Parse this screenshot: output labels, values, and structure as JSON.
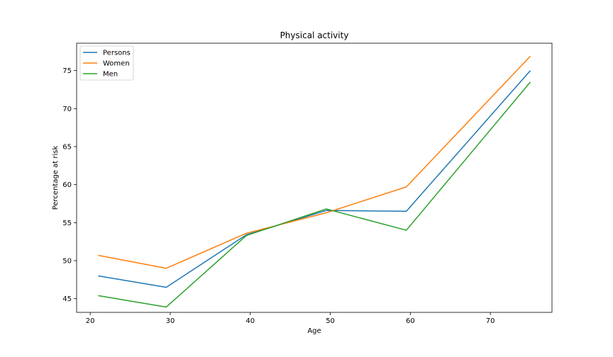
{
  "chart_data": {
    "type": "line",
    "title": "Physical activity",
    "xlabel": "Age",
    "ylabel": "Percentage at risk",
    "xlim": [
      18.3,
      77.7
    ],
    "ylim": [
      43.2,
      78.6
    ],
    "xticks": [
      20,
      30,
      40,
      50,
      60,
      70
    ],
    "yticks": [
      45,
      50,
      55,
      60,
      65,
      70,
      75
    ],
    "grid": false,
    "legend_position": "upper-left",
    "x": [
      21,
      29.5,
      39.5,
      49.5,
      59.5,
      75
    ],
    "series": [
      {
        "name": "Persons",
        "color": "#1f77b4",
        "values": [
          48.0,
          46.5,
          53.4,
          56.6,
          56.5,
          75.0
        ]
      },
      {
        "name": "Women",
        "color": "#ff7f0e",
        "values": [
          50.7,
          49.0,
          53.6,
          56.3,
          59.7,
          76.9
        ]
      },
      {
        "name": "Men",
        "color": "#2ca02c",
        "values": [
          45.4,
          43.9,
          53.3,
          56.8,
          54.0,
          73.5
        ]
      }
    ]
  }
}
